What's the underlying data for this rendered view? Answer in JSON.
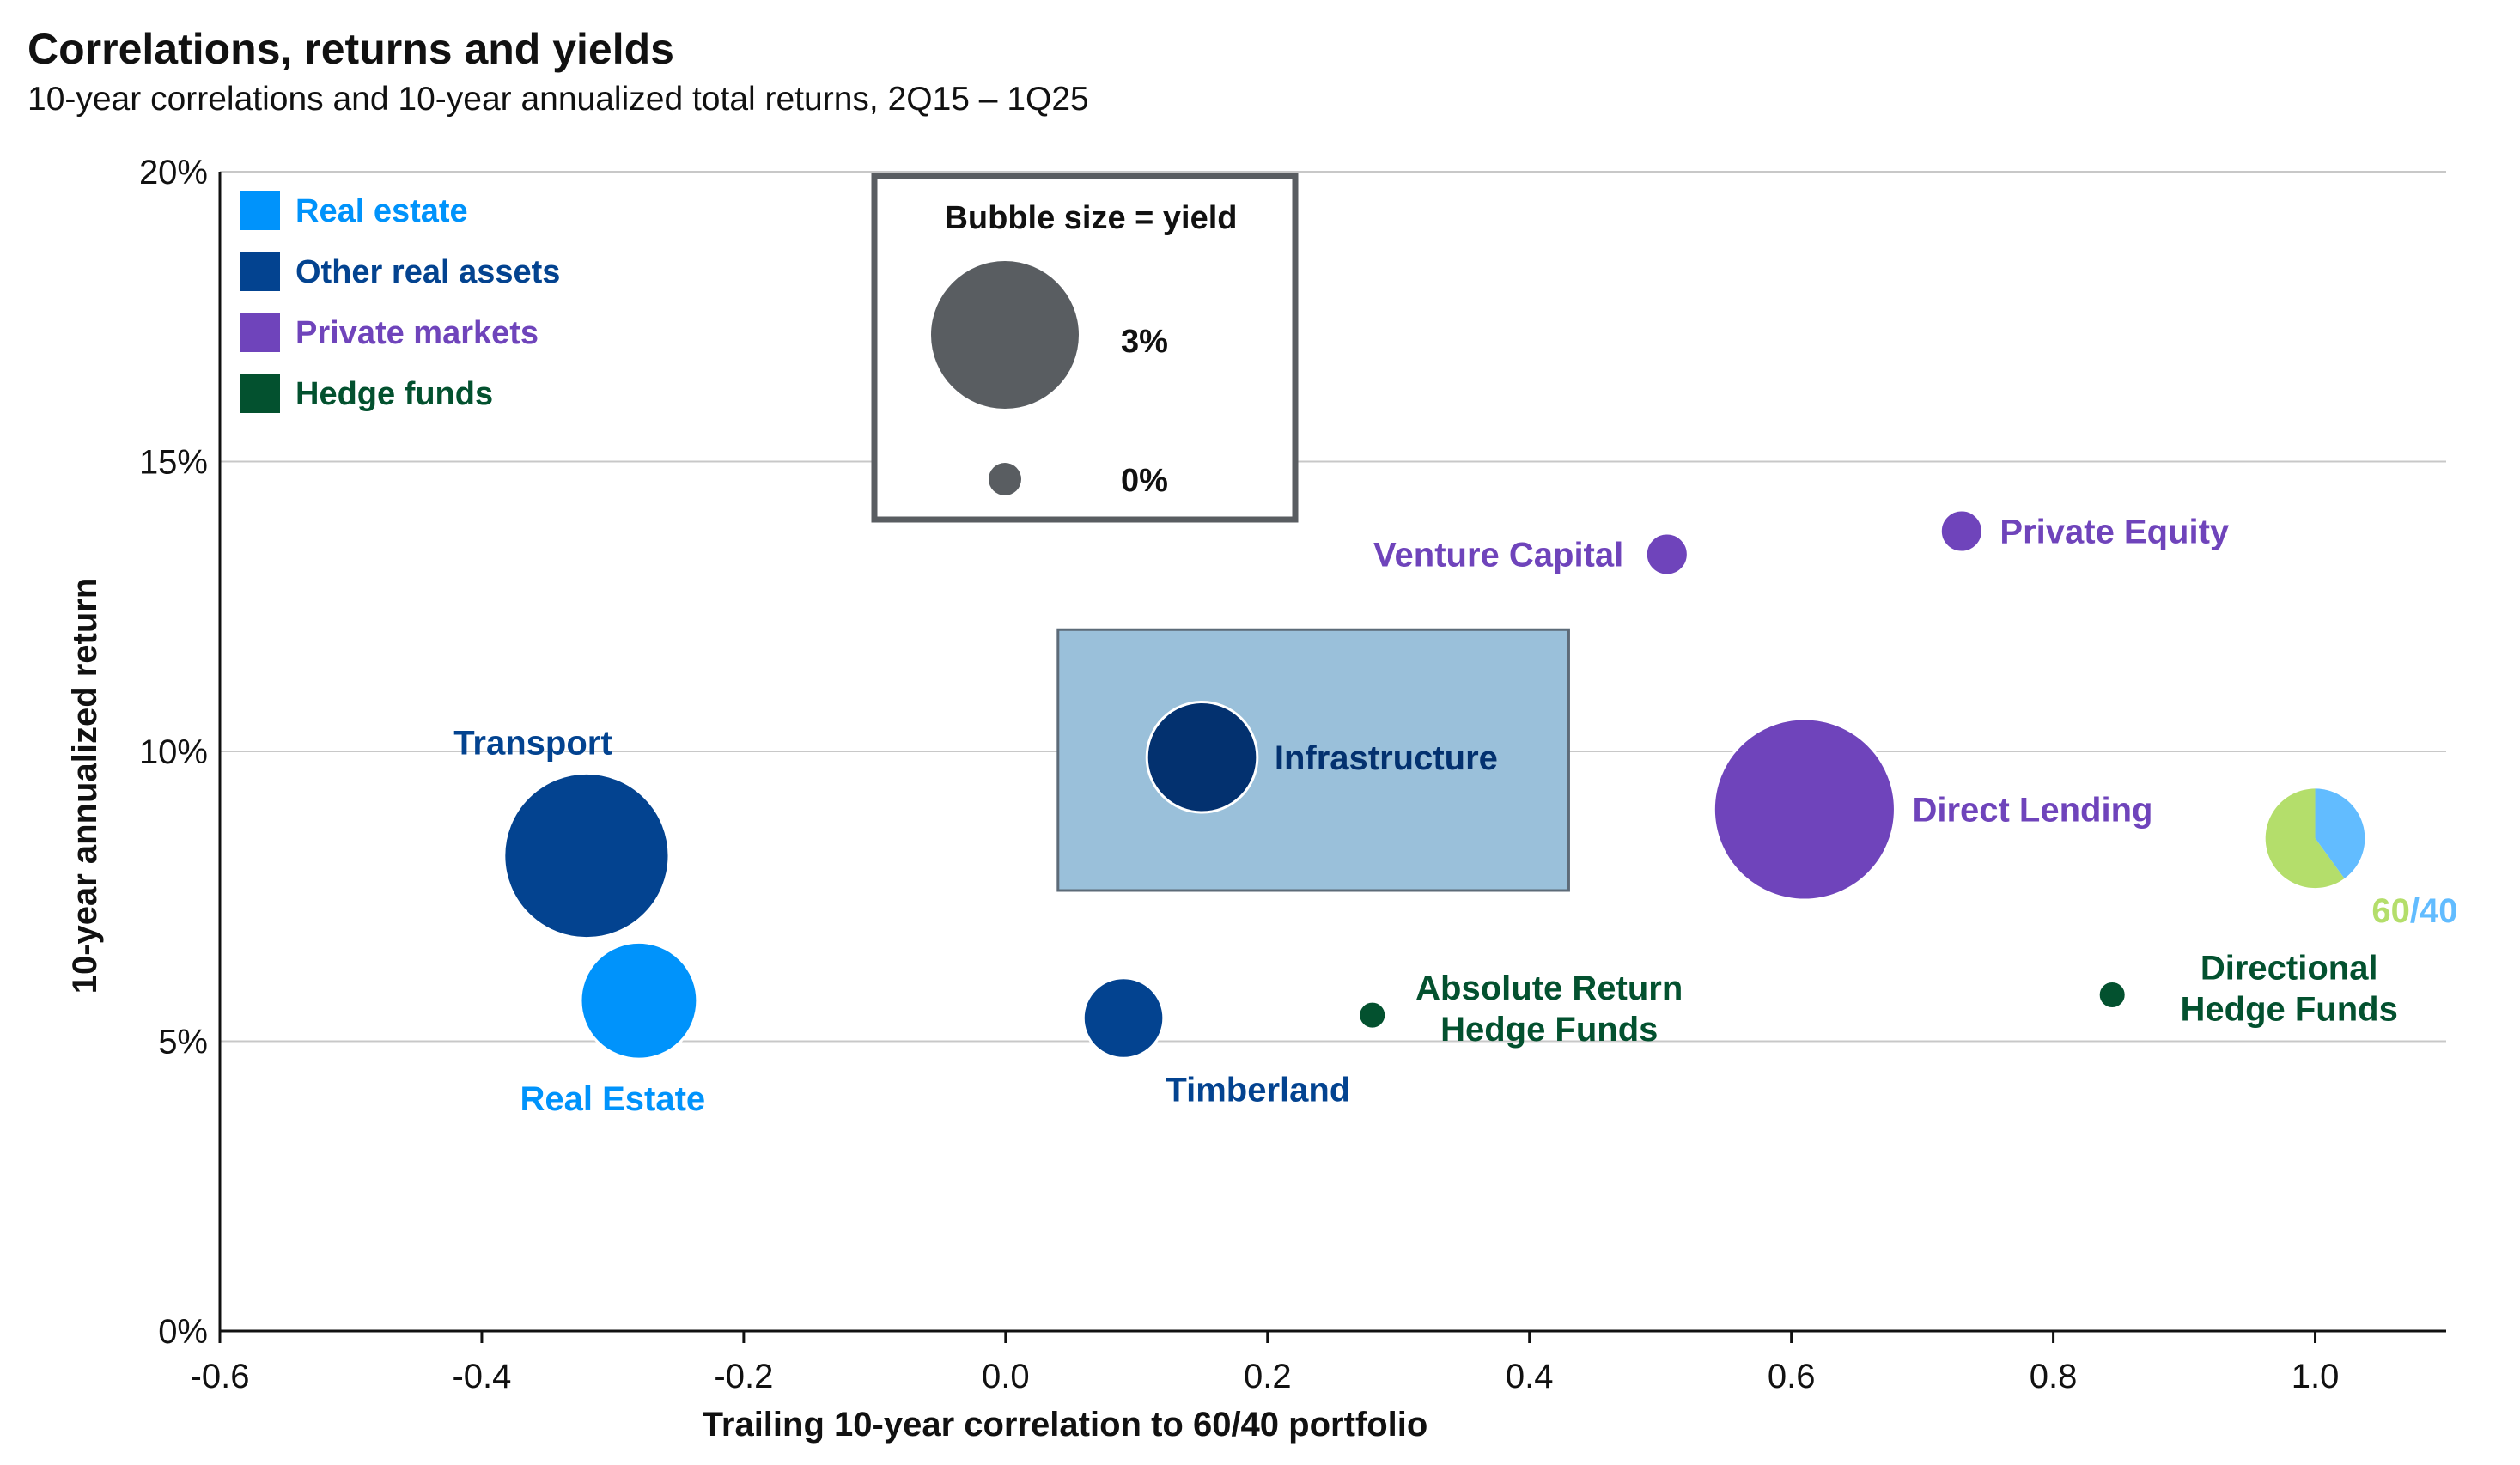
{
  "title": "Correlations, returns and yields",
  "subtitle": "10-year correlations and 10-year annualized total returns, 2Q15 – 1Q25",
  "colors": {
    "real_estate": "#0093fb",
    "other_real_assets": "#034390",
    "infrastructure": "#03316f",
    "private_markets": "#6f44bb",
    "hedge_funds": "#03512f",
    "legend_gray": "#595d61",
    "highlight_fill": "#9ac0da",
    "sixty": "#b4de6b",
    "forty": "#62bcff"
  },
  "chart_data": {
    "type": "scatter",
    "bubble": true,
    "title": "Correlations, returns and yields",
    "subtitle": "10-year correlations and 10-year annualized total returns, 2Q15 – 1Q25",
    "xlabel": "Trailing 10-year correlation to 60/40 portfolio",
    "ylabel": "10-year annualized return",
    "xlim": [
      -0.6,
      1.1
    ],
    "ylim": [
      0,
      20
    ],
    "x_ticks": [
      "-0.6",
      "-0.4",
      "-0.2",
      "0.0",
      "0.2",
      "0.4",
      "0.6",
      "0.8",
      "1.0"
    ],
    "x_tick_values": [
      -0.6,
      -0.4,
      -0.2,
      0.0,
      0.2,
      0.4,
      0.6,
      0.8,
      1.0
    ],
    "y_ticks": [
      "0%",
      "5%",
      "10%",
      "15%",
      "20%"
    ],
    "y_tick_values": [
      0,
      5,
      10,
      15,
      20
    ],
    "grid": "horizontal",
    "legend": {
      "placement": "top-left",
      "items": [
        {
          "label": "Real estate",
          "color": "#0093fb"
        },
        {
          "label": "Other real assets",
          "color": "#034390"
        },
        {
          "label": "Private markets",
          "color": "#6f44bb"
        },
        {
          "label": "Hedge funds",
          "color": "#03512f"
        }
      ]
    },
    "size_legend": {
      "title": "Bubble size = yield",
      "items": [
        {
          "label": "3%",
          "yield": 3.0
        },
        {
          "label": "0%",
          "yield": 0.0
        }
      ]
    },
    "highlight_box": {
      "x_range": [
        0.04,
        0.43
      ],
      "y_range": [
        7.6,
        12.1
      ]
    },
    "points": [
      {
        "name": "Transport",
        "group": "Other real assets",
        "color": "#034390",
        "x": -0.32,
        "y": 8.2,
        "yield": 8.8,
        "label": [
          "Transport"
        ],
        "label_pos": "top-left"
      },
      {
        "name": "Real Estate",
        "group": "Real estate",
        "color": "#0093fb",
        "x": -0.28,
        "y": 5.7,
        "yield": 3.7,
        "label": [
          "Real Estate"
        ],
        "label_pos": "bottom-left"
      },
      {
        "name": "Infrastructure",
        "group": "Other real assets",
        "color": "#03316f",
        "x": 0.15,
        "y": 9.9,
        "yield": 3.2,
        "label": [
          "Infrastructure"
        ],
        "label_pos": "right"
      },
      {
        "name": "Timberland",
        "group": "Other real assets",
        "color": "#034390",
        "x": 0.09,
        "y": 5.4,
        "yield": 1.3,
        "label": [
          "Timberland"
        ],
        "label_pos": "bottom-right"
      },
      {
        "name": "Absolute Return Hedge Funds",
        "group": "Hedge funds",
        "color": "#03512f",
        "x": 0.28,
        "y": 5.45,
        "yield": 0.0,
        "label": [
          "Absolute Return",
          "Hedge Funds"
        ],
        "label_pos": "right"
      },
      {
        "name": "Venture Capital",
        "group": "Private markets",
        "color": "#6f44bb",
        "x": 0.505,
        "y": 13.4,
        "yield": 0.1,
        "label": [
          "Venture Capital"
        ],
        "label_pos": "left"
      },
      {
        "name": "Private Equity",
        "group": "Private markets",
        "color": "#6f44bb",
        "x": 0.73,
        "y": 13.8,
        "yield": 0.1,
        "label": [
          "Private Equity"
        ],
        "label_pos": "right"
      },
      {
        "name": "Direct Lending",
        "group": "Private markets",
        "color": "#6f44bb",
        "x": 0.61,
        "y": 9.0,
        "yield": 11.0,
        "label": [
          "Direct Lending"
        ],
        "label_pos": "right"
      },
      {
        "name": "Directional Hedge Funds",
        "group": "Hedge funds",
        "color": "#03512f",
        "x": 0.845,
        "y": 5.8,
        "yield": 0.0,
        "label": [
          "Directional",
          "Hedge Funds"
        ],
        "label_pos": "right"
      },
      {
        "name": "60/40",
        "group": "60/40",
        "color": "#b4de6b",
        "x": 1.0,
        "y": 8.5,
        "yield": 2.4,
        "label": [
          "60",
          "/",
          "40"
        ],
        "label_pos": "bottom-right",
        "pie": [
          {
            "label": "60",
            "share": 0.6,
            "color": "#b4de6b"
          },
          {
            "label": "40",
            "share": 0.4,
            "color": "#62bcff"
          }
        ]
      }
    ]
  }
}
